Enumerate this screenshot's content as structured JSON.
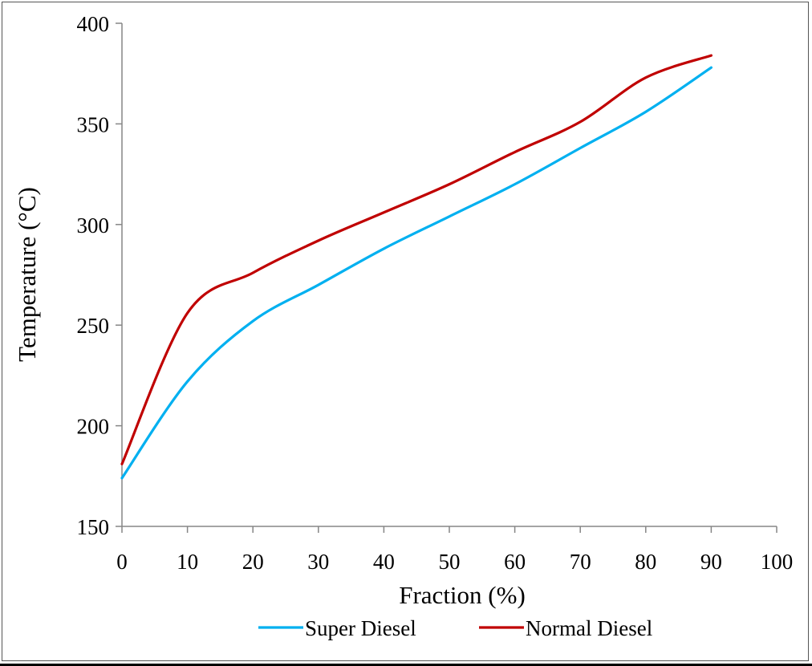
{
  "chart_data": {
    "type": "line",
    "xlabel": "Fraction (%)",
    "ylabel": "Temperature (°C)",
    "xlim": [
      0,
      100
    ],
    "ylim": [
      150,
      400
    ],
    "x_ticks": [
      "0",
      "10",
      "20",
      "30",
      "40",
      "50",
      "60",
      "70",
      "80",
      "90",
      "100"
    ],
    "y_ticks": [
      "150",
      "200",
      "250",
      "300",
      "350",
      "400"
    ],
    "grid": false,
    "legend_position": "bottom",
    "series": [
      {
        "name": "Super Diesel",
        "color": "#00B0F0",
        "x": [
          0,
          10,
          20,
          30,
          40,
          50,
          60,
          70,
          80,
          90
        ],
        "y": [
          174,
          222,
          252,
          270,
          288,
          304,
          320,
          338,
          356,
          378
        ]
      },
      {
        "name": "Normal Diesel",
        "color": "#C00000",
        "x": [
          0,
          10,
          20,
          30,
          40,
          50,
          60,
          70,
          80,
          90
        ],
        "y": [
          181,
          256,
          276,
          292,
          306,
          320,
          336,
          351,
          373,
          384
        ]
      }
    ]
  }
}
